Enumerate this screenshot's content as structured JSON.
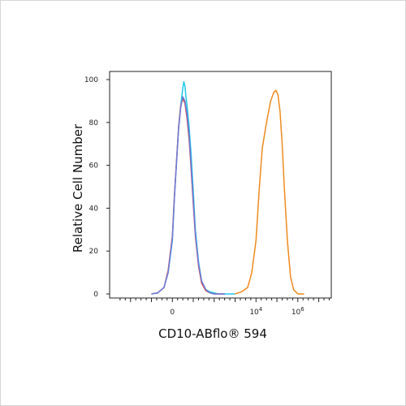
{
  "chart_data": {
    "type": "line",
    "xlabel": "CD10-ABflo® 594",
    "ylabel": "Relative Cell Number",
    "x_scale": "biexponential",
    "ylim": [
      0,
      100
    ],
    "y_ticks": [
      0,
      20,
      40,
      60,
      80,
      100
    ],
    "x_ticks": [
      {
        "pos": 0,
        "label": "0",
        "sup": ""
      },
      {
        "pos": 4,
        "label": "10",
        "sup": "4"
      },
      {
        "pos": 6,
        "label": "10",
        "sup": "6"
      }
    ],
    "x_range": [
      -3.0,
      7.6
    ],
    "grid": false,
    "legend": "none",
    "series": [
      {
        "color": "#1ec8e8",
        "x": [
          -1.0,
          -0.7,
          -0.4,
          -0.2,
          0.0,
          0.1,
          0.2,
          0.3,
          0.4,
          0.5,
          0.55,
          0.6,
          0.65,
          0.7,
          0.8,
          0.9,
          1.0,
          1.1,
          1.25,
          1.4,
          1.6,
          1.8,
          2.0,
          2.2,
          2.5,
          3.0
        ],
        "y": [
          0,
          0.5,
          3,
          10,
          25,
          45,
          62,
          78,
          88,
          96,
          99,
          97,
          92,
          88,
          78,
          65,
          48,
          30,
          15,
          6,
          2,
          1,
          0.5,
          0,
          0,
          0
        ]
      },
      {
        "color": "#e04a4a",
        "x": [
          -1.0,
          -0.7,
          -0.4,
          -0.2,
          0.0,
          0.1,
          0.2,
          0.3,
          0.4,
          0.5,
          0.6,
          0.7,
          0.8,
          0.9,
          1.0,
          1.1,
          1.25,
          1.4,
          1.6,
          1.8,
          2.0,
          2.5
        ],
        "y": [
          0,
          0.5,
          3,
          11,
          27,
          46,
          62,
          78,
          88,
          91,
          89,
          82,
          72,
          58,
          42,
          27,
          13,
          5,
          1.5,
          0.5,
          0,
          0
        ]
      },
      {
        "color": "#6b7bd8",
        "x": [
          -1.0,
          -0.7,
          -0.4,
          -0.2,
          0.0,
          0.1,
          0.2,
          0.3,
          0.4,
          0.5,
          0.6,
          0.7,
          0.8,
          0.9,
          1.0,
          1.1,
          1.25,
          1.4,
          1.6,
          1.8,
          2.0,
          2.5
        ],
        "y": [
          0,
          0.5,
          3,
          10,
          26,
          45,
          61,
          77,
          87,
          92,
          90,
          84,
          74,
          60,
          44,
          28,
          14,
          6,
          2,
          0.5,
          0,
          0
        ]
      },
      {
        "color": "#ef8a1e",
        "x": [
          3.0,
          3.3,
          3.6,
          3.8,
          4.0,
          4.15,
          4.3,
          4.5,
          4.7,
          4.85,
          4.95,
          5.05,
          5.15,
          5.25,
          5.35,
          5.5,
          5.65,
          5.8,
          6.0,
          6.3
        ],
        "y": [
          0,
          1,
          3,
          10,
          25,
          48,
          68,
          80,
          90,
          94,
          95,
          93,
          85,
          70,
          50,
          25,
          8,
          2,
          0,
          0
        ]
      }
    ]
  }
}
